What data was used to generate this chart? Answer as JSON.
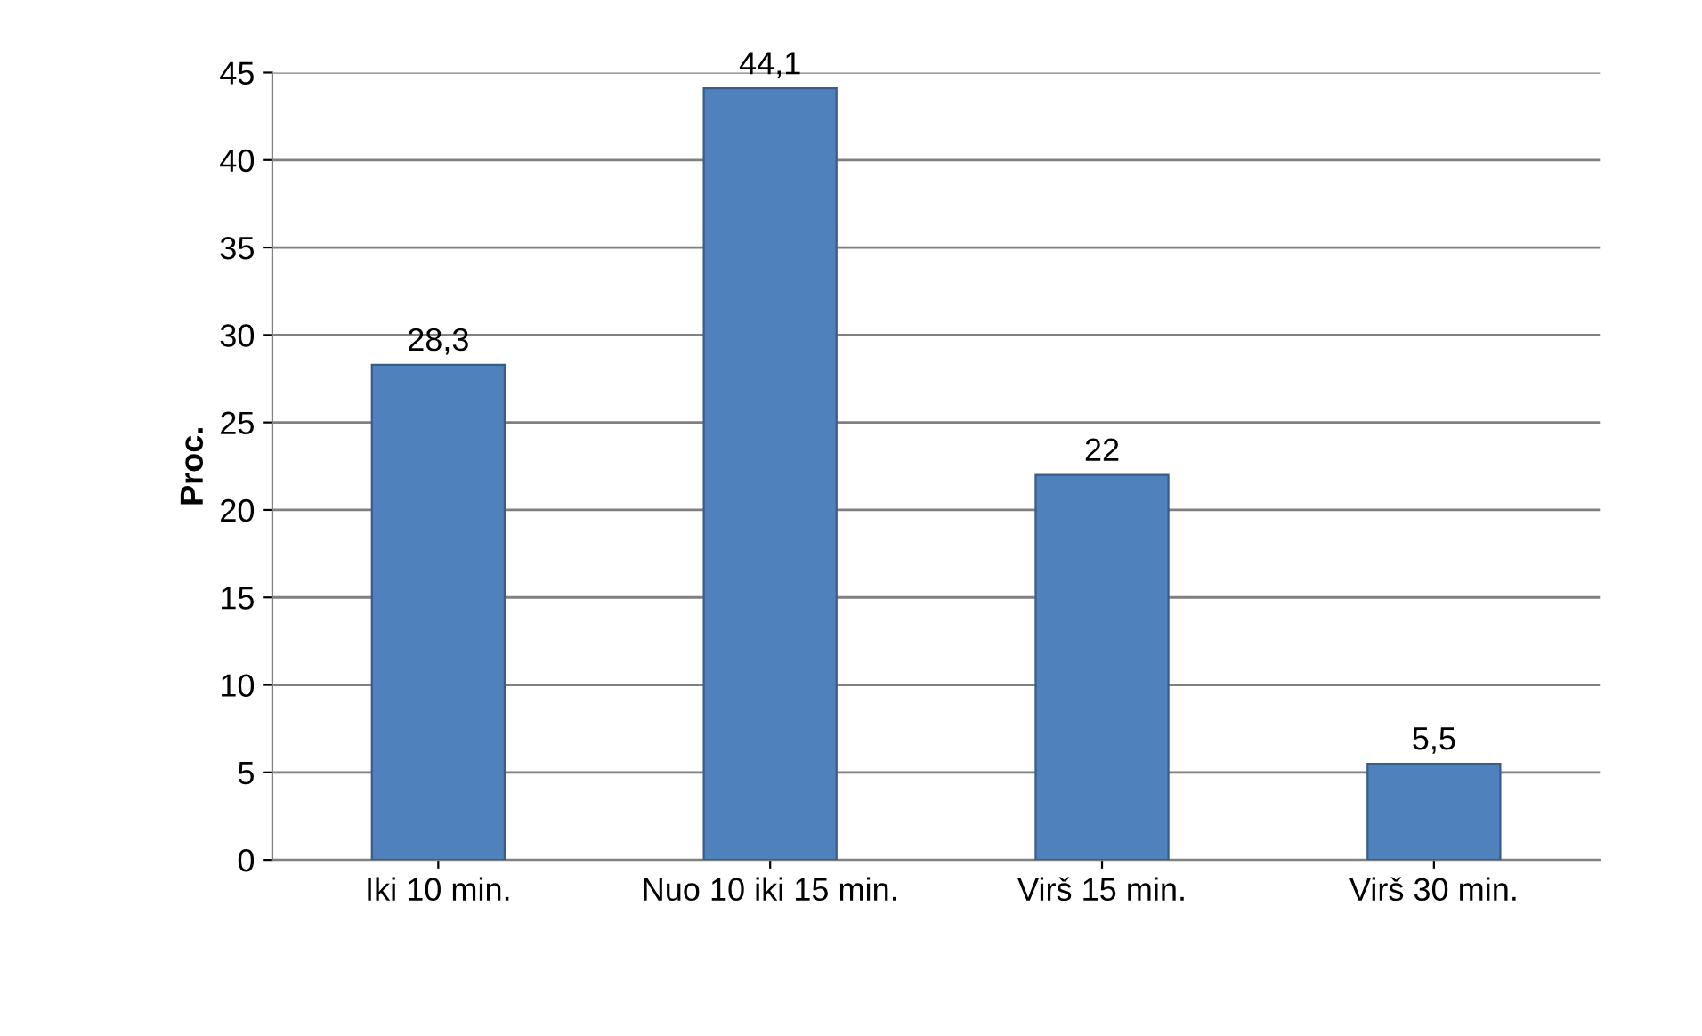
{
  "chart_data": {
    "type": "bar",
    "ylabel": "Proc.",
    "categories": [
      "Iki 10 min.",
      "Nuo 10 iki 15 min.",
      "Virš 15 min.",
      "Virš 30 min."
    ],
    "values": [
      28.3,
      44.1,
      22,
      5.5
    ],
    "value_labels": [
      "28,3",
      "44,1",
      "22",
      "5,5"
    ],
    "color": "#4f81bd",
    "ylim": [
      0,
      45
    ],
    "yticks": [
      0,
      5,
      10,
      15,
      20,
      25,
      30,
      35,
      40,
      45
    ],
    "grid": "y",
    "legend": false
  }
}
